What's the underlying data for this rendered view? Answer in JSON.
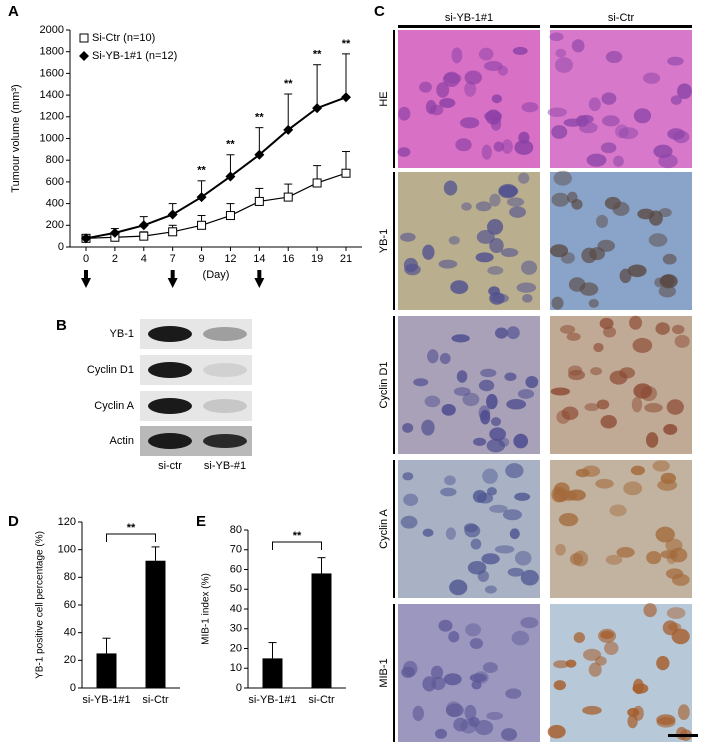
{
  "panels": {
    "a": "A",
    "b": "B",
    "c": "C",
    "d": "D",
    "e": "E"
  },
  "chart_data": [
    {
      "type": "line",
      "ylabel": "Tumour volume (mm³)",
      "xlabel": "(Day)",
      "categories": [
        "0",
        "2",
        "4",
        "7",
        "9",
        "12",
        "14",
        "16",
        "19",
        "21"
      ],
      "ylim": [
        0,
        2000
      ],
      "yticks": [
        0,
        200,
        400,
        600,
        800,
        1000,
        1200,
        1400,
        1600,
        1800,
        2000
      ],
      "legend": "upper left",
      "series": [
        {
          "name": "Si-Ctr (n=10)",
          "color": "#000000",
          "marker": "square",
          "values": [
            80,
            90,
            100,
            140,
            200,
            290,
            420,
            460,
            590,
            680
          ],
          "errors": [
            20,
            30,
            40,
            60,
            90,
            110,
            120,
            120,
            160,
            200
          ]
        },
        {
          "name": "Si-YB-1#1 (n=12)",
          "color": "#000000",
          "marker": "diamond",
          "values": [
            80,
            130,
            200,
            300,
            460,
            650,
            850,
            1080,
            1280,
            1380
          ],
          "errors": [
            20,
            40,
            80,
            100,
            150,
            200,
            250,
            330,
            400,
            400
          ]
        }
      ],
      "annotations": [
        {
          "x": "9",
          "text": "**"
        },
        {
          "x": "12",
          "text": "**"
        },
        {
          "x": "14",
          "text": "**"
        },
        {
          "x": "16",
          "text": "**"
        },
        {
          "x": "19",
          "text": "**"
        },
        {
          "x": "21",
          "text": "**"
        }
      ]
    },
    {
      "type": "bar",
      "ylabel": "YB-1 positive cell percentage (%)",
      "categories": [
        "si-YB-1#1",
        "si-Ctr"
      ],
      "values": [
        25,
        92
      ],
      "errors": [
        11,
        10
      ],
      "color": "#000000",
      "ylim": [
        0,
        120
      ],
      "yticks": [
        0,
        20,
        40,
        60,
        80,
        100,
        120
      ],
      "annotation": "**"
    },
    {
      "type": "bar",
      "ylabel": "MIB-1 index (%)",
      "categories": [
        "si-YB-1#1",
        "si-Ctr"
      ],
      "values": [
        15,
        58
      ],
      "errors": [
        8,
        8
      ],
      "color": "#000000",
      "ylim": [
        0,
        80
      ],
      "yticks": [
        0,
        10,
        20,
        30,
        40,
        50,
        60,
        70,
        80
      ],
      "annotation": "**"
    }
  ],
  "blot": {
    "rows": [
      "YB-1",
      "Cyclin D1",
      "Cyclin A",
      "Actin"
    ],
    "lanes": [
      "si-ctr",
      "si-YB-#1"
    ]
  },
  "histology": {
    "columns": [
      "si-YB-1#1",
      "si-Ctr"
    ],
    "rows": [
      "HE",
      "YB-1",
      "Cyclin D1",
      "Cyclin A",
      "MIB-1"
    ]
  }
}
